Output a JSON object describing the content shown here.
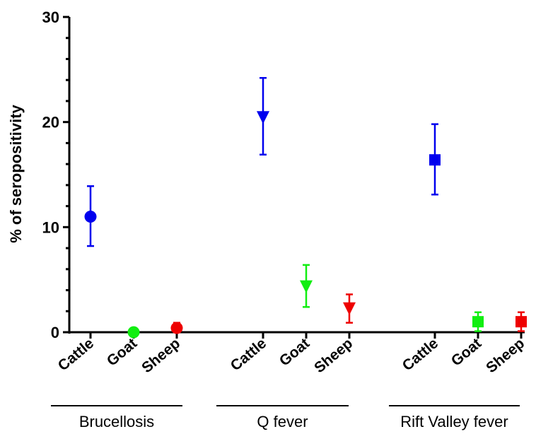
{
  "chart_data": {
    "type": "scatter",
    "ylabel": "% of seropositivity",
    "ylim": [
      0,
      30
    ],
    "yticks": [
      0,
      10,
      20,
      30
    ],
    "grid": false,
    "groups": [
      {
        "name": "Brucellosis",
        "marker": "circle",
        "points": [
          {
            "category": "Cattle",
            "value": 11.0,
            "err_low": 8.2,
            "err_high": 13.9,
            "color": "#0000ee"
          },
          {
            "category": "Goat",
            "value": 0.0,
            "err_low": 0.0,
            "err_high": 0.0,
            "color": "#11ee11"
          },
          {
            "category": "Sheep",
            "value": 0.4,
            "err_low": 0.0,
            "err_high": 0.9,
            "color": "#ee0000"
          }
        ]
      },
      {
        "name": "Q fever",
        "marker": "triangle-down",
        "points": [
          {
            "category": "Cattle",
            "value": 20.5,
            "err_low": 16.9,
            "err_high": 24.2,
            "color": "#0000ee"
          },
          {
            "category": "Goat",
            "value": 4.4,
            "err_low": 2.4,
            "err_high": 6.4,
            "color": "#11ee11"
          },
          {
            "category": "Sheep",
            "value": 2.3,
            "err_low": 0.9,
            "err_high": 3.6,
            "color": "#ee0000"
          }
        ]
      },
      {
        "name": "Rift Valley fever",
        "marker": "square",
        "points": [
          {
            "category": "Cattle",
            "value": 16.4,
            "err_low": 13.1,
            "err_high": 19.8,
            "color": "#0000ee"
          },
          {
            "category": "Goat",
            "value": 1.0,
            "err_low": 0.1,
            "err_high": 1.9,
            "color": "#11ee11"
          },
          {
            "category": "Sheep",
            "value": 1.0,
            "err_low": 0.1,
            "err_high": 1.9,
            "color": "#ee0000"
          }
        ]
      }
    ]
  }
}
